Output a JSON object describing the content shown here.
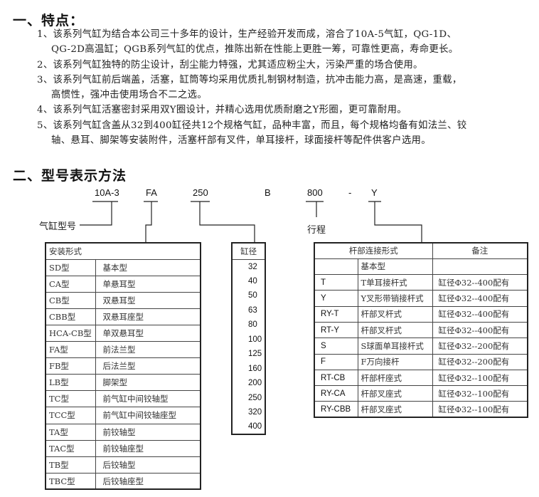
{
  "section1": {
    "title": "一、特点：",
    "items": [
      {
        "line1": "1、该系列气缸为结合本公司三十多年的设计，生产经验开发而成，溶合了10A-5气缸，QG-1D、",
        "line2": "QG-2D高温缸；QGB系列气缸的优点，推陈出新在性能上更胜一筹，可靠性更高，寿命更长。"
      },
      {
        "line1": "2、该系列气缸独特的防尘设计，刮尘能力特强，尤其适应粉尘大，污染严重的场合使用。"
      },
      {
        "line1": "3、该系列气缸前后端盖，活塞，缸筒等均采用优质扎制钢材制造，抗冲击能力高，是高速，重载，",
        "line2": "高惯性，强冲击使用场合不二之选。"
      },
      {
        "line1": "4、该系列气缸活塞密封采用双Y圈设计，并精心选用优质耐磨之Y形圈，更可靠耐用。"
      },
      {
        "line1": "5、该系列气缸含盖从32到400缸径共12个规格气缸，品种丰富，而且，每个规格均备有如法兰、铰",
        "line2": "轴、悬耳、脚架等安装附件，活塞杆部有叉件，单耳接杆，球面接杆等配件供客户选用。"
      }
    ]
  },
  "section2": {
    "title": "二、型号表示方法",
    "model_code": {
      "series": "10A-3",
      "mount": "FA",
      "bore": "250",
      "b": "B",
      "stroke": "800",
      "dash": "-",
      "rod": "Y"
    },
    "labels": {
      "series": "气缸型号",
      "stroke": "行程"
    },
    "mount_table": {
      "header": "安装形式",
      "rows": [
        [
          "SD型",
          "基本型"
        ],
        [
          "CA型",
          "单悬耳型"
        ],
        [
          "CB型",
          "双悬耳型"
        ],
        [
          "CBB型",
          "双悬耳座型"
        ],
        [
          "HCA-CB型",
          "单双悬耳型"
        ],
        [
          "FA型",
          "前法兰型"
        ],
        [
          "FB型",
          "后法兰型"
        ],
        [
          "LB型",
          "脚架型"
        ],
        [
          "TC型",
          "前气缸中间铰轴型"
        ],
        [
          "TCC型",
          "前气缸中间铰轴座型"
        ],
        [
          "TA型",
          "前铰轴型"
        ],
        [
          "TAC型",
          "前铰轴座型"
        ],
        [
          "TB型",
          "后铰轴型"
        ],
        [
          "TBC型",
          "后铰轴座型"
        ]
      ]
    },
    "bore_table": {
      "header": "缸径",
      "values": [
        "32",
        "40",
        "50",
        "63",
        "80",
        "100",
        "125",
        "160",
        "200",
        "250",
        "320",
        "400"
      ]
    },
    "rod_table": {
      "headers": [
        "杆部连接形式",
        "备注"
      ],
      "rows": [
        [
          "",
          "基本型",
          ""
        ],
        [
          "T",
          "T单耳接杆式",
          "缸径Φ32--400配有"
        ],
        [
          "Y",
          "Y叉形带销接杆式",
          "缸径Φ32--400配有"
        ],
        [
          "RY-T",
          "杆部叉杆式",
          "缸径Φ32--400配有"
        ],
        [
          "RT-Y",
          "杆部叉杆式",
          "缸径Φ32--400配有"
        ],
        [
          "S",
          "S球面单耳接杆式",
          "缸径Φ32--200配有"
        ],
        [
          "F",
          "F万向接杆",
          "缸径Φ32--200配有"
        ],
        [
          "RT-CB",
          "杆部杆座式",
          "缸径Φ32--100配有"
        ],
        [
          "RY-CA",
          "杆部叉座式",
          "缸径Φ32--100配有"
        ],
        [
          "RY-CBB",
          "杆部叉座式",
          "缸径Φ32--100配有"
        ]
      ]
    }
  }
}
